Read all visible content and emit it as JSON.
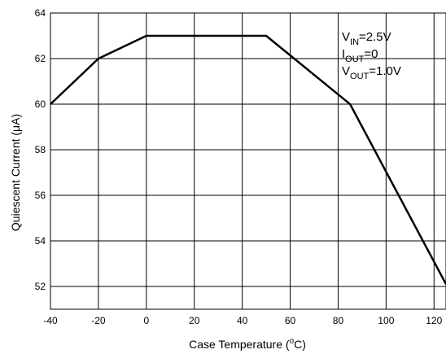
{
  "chart_data": {
    "type": "line",
    "title": "",
    "xlabel": "Case Temperature (°C)",
    "xlabel_parts": {
      "prefix": "Case Temperature (",
      "degree": "o",
      "suffix": "C)"
    },
    "ylabel": "Quiescent Current (μA)",
    "xlim": [
      -40,
      125
    ],
    "ylim": [
      51,
      64
    ],
    "x_ticks": [
      -40,
      -20,
      0,
      20,
      40,
      60,
      80,
      100,
      120
    ],
    "y_ticks": [
      52,
      54,
      56,
      58,
      60,
      62,
      64
    ],
    "grid": true,
    "series": [
      {
        "x": [
          -40,
          -20,
          0,
          50,
          85,
          125
        ],
        "y": [
          60,
          62,
          63,
          63,
          60,
          52.1
        ]
      }
    ],
    "annotation": {
      "lines": [
        {
          "main": "V",
          "sub": "IN",
          "rest": "=2.5V"
        },
        {
          "main": "I",
          "sub": "OUT",
          "rest": "=0"
        },
        {
          "main": "V",
          "sub": "OUT",
          "rest": "=1.0V"
        }
      ]
    }
  },
  "colors": {
    "line": "#000000",
    "grid": "#000000",
    "background": "#ffffff"
  }
}
